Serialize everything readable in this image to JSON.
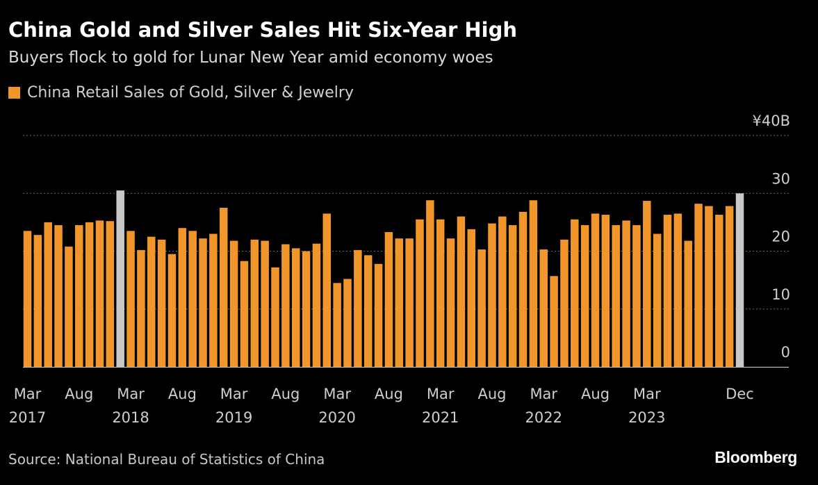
{
  "header": {
    "title": "China Gold and Silver Sales Hit Six-Year High",
    "subtitle": "Buyers flock to gold for Lunar New Year amid economy woes"
  },
  "footer": {
    "source": "Source: National Bureau of Statistics of China",
    "brand": "Bloomberg"
  },
  "colors": {
    "bar": "#f0962a",
    "highlight": "#c8c8c8",
    "background": "#000000",
    "grid": "#6a6a6a"
  },
  "chart_data": {
    "type": "bar",
    "series": [
      {
        "name": "China Retail Sales of Gold, Silver & Jewelry",
        "values": [
          23.5,
          22.8,
          25.0,
          24.5,
          20.8,
          24.5,
          25.0,
          25.3,
          25.2,
          30.5,
          23.5,
          20.2,
          22.5,
          22.0,
          19.5,
          24.0,
          23.5,
          22.2,
          23.0,
          27.5,
          21.8,
          18.3,
          22.0,
          21.8,
          17.2,
          21.2,
          20.5,
          20.0,
          21.3,
          26.5,
          14.5,
          15.2,
          20.2,
          19.3,
          17.8,
          23.3,
          22.2,
          22.2,
          25.5,
          28.8,
          25.5,
          22.2,
          26.0,
          23.8,
          20.3,
          24.8,
          26.0,
          24.5,
          26.8,
          28.8,
          20.3,
          15.7,
          22.0,
          25.5,
          24.5,
          26.5,
          26.3,
          24.5,
          25.3,
          24.5,
          28.7,
          23.0,
          26.3,
          26.5,
          21.8,
          28.2,
          27.8,
          26.3,
          27.8,
          30.0
        ]
      }
    ],
    "highlight_indices": [
      9,
      69
    ],
    "y_unit": "¥",
    "y_tick_labels": [
      "0",
      "10",
      "20",
      "30",
      "¥40B"
    ],
    "y_ticks": [
      0,
      10,
      20,
      30,
      40
    ],
    "ylim": [
      0,
      40
    ],
    "x_tick_labels": [
      {
        "label": "Mar",
        "year": "2017",
        "index": 0
      },
      {
        "label": "Aug",
        "year": "",
        "index": 5
      },
      {
        "label": "Mar",
        "year": "2018",
        "index": 10
      },
      {
        "label": "Aug",
        "year": "",
        "index": 15
      },
      {
        "label": "Mar",
        "year": "2019",
        "index": 20
      },
      {
        "label": "Aug",
        "year": "",
        "index": 25
      },
      {
        "label": "Mar",
        "year": "2020",
        "index": 30
      },
      {
        "label": "Aug",
        "year": "",
        "index": 35
      },
      {
        "label": "Mar",
        "year": "2021",
        "index": 40
      },
      {
        "label": "Aug",
        "year": "",
        "index": 45
      },
      {
        "label": "Mar",
        "year": "2022",
        "index": 50
      },
      {
        "label": "Aug",
        "year": "",
        "index": 55
      },
      {
        "label": "Mar",
        "year": "2023",
        "index": 60
      },
      {
        "label": "Dec",
        "year": "",
        "index": 69
      }
    ],
    "grid": true,
    "legend_position": "top-left"
  }
}
